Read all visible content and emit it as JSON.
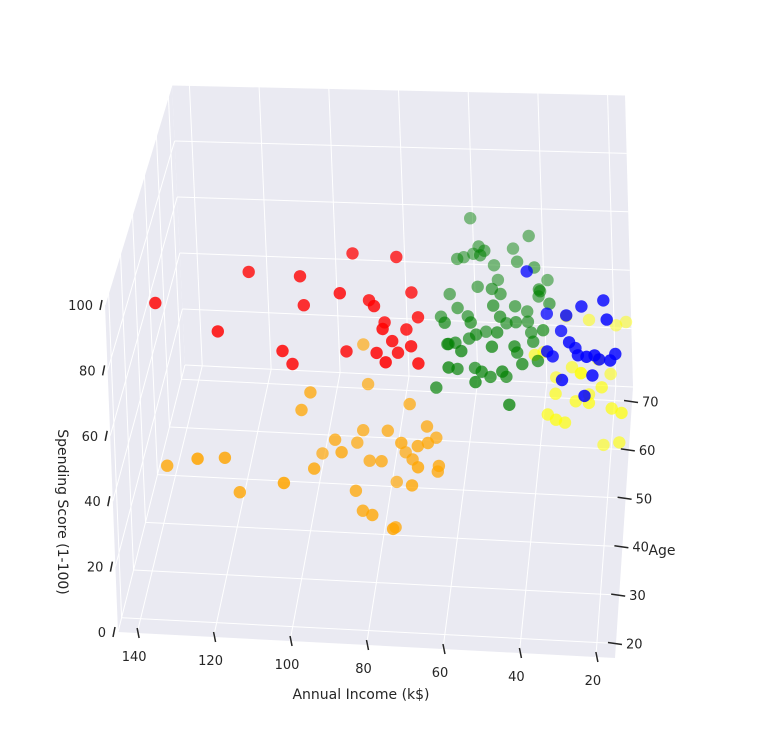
{
  "chart_data": {
    "type": "scatter",
    "projection": "3d",
    "title": "",
    "xlabel": "Annual Income (k$)",
    "ylabel": "Age",
    "zlabel": "Spending Score (1-100)",
    "xlim": [
      15,
      145
    ],
    "ylim": [
      17,
      73
    ],
    "zlim": [
      0,
      100
    ],
    "x_ticks": [
      140,
      120,
      100,
      80,
      60,
      40,
      20
    ],
    "y_ticks": [
      70,
      60,
      50,
      40,
      30,
      20
    ],
    "z_ticks": [
      100,
      80,
      60,
      40,
      20,
      0
    ],
    "grid": true,
    "background_color": "#eaeaf2",
    "grid_color": "#ffffff",
    "series": [
      {
        "color": "#ff0000",
        "points": [
          [
            137,
            32,
            83
          ],
          [
            120,
            30,
            79
          ],
          [
            113,
            36,
            91
          ],
          [
            103,
            30,
            75
          ],
          [
            101,
            32,
            68
          ],
          [
            99,
            35,
            93
          ],
          [
            98,
            34,
            85
          ],
          [
            88,
            33,
            92
          ],
          [
            87,
            34,
            71
          ],
          [
            86,
            40,
            95
          ],
          [
            81,
            36,
            86
          ],
          [
            79,
            33,
            89
          ],
          [
            78,
            30,
            78
          ],
          [
            77,
            36,
            79
          ],
          [
            76,
            29,
            88
          ],
          [
            75,
            27,
            80
          ],
          [
            74,
            31,
            81
          ],
          [
            73,
            33,
            74
          ],
          [
            71,
            35,
            79
          ],
          [
            70,
            38,
            87
          ],
          [
            69,
            31,
            80
          ],
          [
            68,
            36,
            82
          ],
          [
            67,
            30,
            76
          ],
          [
            74,
            39,
            97
          ]
        ]
      },
      {
        "color": "#008000",
        "points": [
          [
            63,
            65,
            55
          ],
          [
            62,
            59,
            48
          ],
          [
            61,
            50,
            51
          ],
          [
            60,
            47,
            47
          ],
          [
            59,
            68,
            52
          ],
          [
            58,
            54,
            46
          ],
          [
            57,
            52,
            55
          ],
          [
            56,
            63,
            60
          ],
          [
            55,
            49,
            56
          ],
          [
            54,
            58,
            42
          ],
          [
            53,
            45,
            50
          ],
          [
            52,
            67,
            45
          ],
          [
            51,
            54,
            58
          ],
          [
            50,
            60,
            52
          ],
          [
            49,
            48,
            59
          ],
          [
            48,
            57,
            47
          ],
          [
            47,
            43,
            54
          ],
          [
            46,
            65,
            55
          ],
          [
            45,
            55,
            51
          ],
          [
            44,
            50,
            49
          ],
          [
            43,
            62,
            43
          ],
          [
            42,
            46,
            52
          ],
          [
            41,
            56,
            46
          ],
          [
            40,
            53,
            48
          ],
          [
            39,
            59,
            56
          ],
          [
            38,
            68,
            44
          ],
          [
            60,
            70,
            61
          ],
          [
            57,
            66,
            58
          ],
          [
            66,
            47,
            40
          ],
          [
            64,
            55,
            42
          ],
          [
            65,
            63,
            46
          ],
          [
            62,
            69,
            49
          ],
          [
            55,
            64,
            60
          ],
          [
            52,
            58,
            57
          ],
          [
            48,
            70,
            51
          ],
          [
            46,
            60,
            48
          ],
          [
            61,
            40,
            59
          ],
          [
            58,
            43,
            60
          ],
          [
            54,
            41,
            53
          ],
          [
            50,
            45,
            59
          ],
          [
            47,
            49,
            42
          ],
          [
            45,
            41,
            46
          ],
          [
            43,
            68,
            59
          ],
          [
            41,
            64,
            55
          ],
          [
            39,
            61,
            52
          ],
          [
            37,
            52,
            54
          ],
          [
            63,
            49,
            52
          ],
          [
            59,
            58,
            47
          ],
          [
            56,
            51,
            41
          ],
          [
            53,
            67,
            50
          ],
          [
            49,
            53,
            56
          ],
          [
            44,
            46,
            58
          ],
          [
            42,
            57,
            48
          ],
          [
            40,
            64,
            45
          ],
          [
            38,
            48,
            50
          ],
          [
            36,
            58,
            53
          ],
          [
            64,
            51,
            56
          ],
          [
            57,
            63,
            49
          ],
          [
            51,
            47,
            45
          ],
          [
            67,
            60,
            43
          ]
        ]
      },
      {
        "color": "#ffa500",
        "points": [
          [
            137,
            36,
            25
          ],
          [
            126,
            28,
            40
          ],
          [
            120,
            32,
            35
          ],
          [
            117,
            34,
            21
          ],
          [
            103,
            27,
            36
          ],
          [
            101,
            39,
            42
          ],
          [
            99,
            41,
            45
          ],
          [
            98,
            47,
            15
          ],
          [
            97,
            35,
            29
          ],
          [
            93,
            42,
            28
          ],
          [
            90,
            37,
            32
          ],
          [
            88,
            46,
            21
          ],
          [
            87,
            39,
            16
          ],
          [
            86,
            45,
            27
          ],
          [
            85,
            38,
            11
          ],
          [
            84,
            43,
            20
          ],
          [
            82,
            36,
            13
          ],
          [
            80,
            40,
            25
          ],
          [
            79,
            44,
            29
          ],
          [
            78,
            48,
            5
          ],
          [
            77,
            41,
            1
          ],
          [
            76,
            34,
            12
          ],
          [
            75,
            47,
            17
          ],
          [
            74,
            38,
            35
          ],
          [
            73,
            45,
            37
          ],
          [
            72,
            42,
            23
          ],
          [
            71,
            36,
            24
          ],
          [
            70,
            40,
            31
          ],
          [
            69,
            35,
            32
          ],
          [
            68,
            43,
            33
          ],
          [
            67,
            39,
            34
          ],
          [
            66,
            45,
            26
          ],
          [
            65,
            41,
            21
          ],
          [
            64,
            38,
            28
          ],
          [
            87,
            52,
            45
          ],
          [
            85,
            48,
            38
          ]
        ]
      },
      {
        "color": "#0000ff",
        "points": [
          [
            39,
            39,
            97
          ],
          [
            34,
            40,
            81
          ],
          [
            33,
            32,
            82
          ],
          [
            32,
            35,
            75
          ],
          [
            30,
            38,
            79
          ],
          [
            29,
            30,
            76
          ],
          [
            28,
            34,
            92
          ],
          [
            27,
            31,
            88
          ],
          [
            26,
            36,
            77
          ],
          [
            25,
            33,
            80
          ],
          [
            24,
            35,
            94
          ],
          [
            23,
            29,
            73
          ],
          [
            22,
            27,
            91
          ],
          [
            21,
            31,
            77
          ],
          [
            20,
            28,
            90
          ],
          [
            19,
            30,
            85
          ],
          [
            18,
            34,
            99
          ],
          [
            17,
            32,
            96
          ],
          [
            16,
            29,
            87
          ],
          [
            15,
            33,
            82
          ]
        ]
      },
      {
        "color": "#ffff00",
        "points": [
          [
            40,
            55,
            40
          ],
          [
            38,
            58,
            36
          ],
          [
            36,
            50,
            28
          ],
          [
            35,
            60,
            24
          ],
          [
            34,
            52,
            32
          ],
          [
            33,
            45,
            35
          ],
          [
            32,
            62,
            42
          ],
          [
            31,
            48,
            29
          ],
          [
            30,
            57,
            33
          ],
          [
            29,
            67,
            14
          ],
          [
            28,
            49,
            35
          ],
          [
            27,
            53,
            38
          ],
          [
            26,
            65,
            36
          ],
          [
            25,
            54,
            29
          ],
          [
            24,
            46,
            40
          ],
          [
            23,
            60,
            31
          ],
          [
            22,
            59,
            3
          ],
          [
            21,
            51,
            37
          ],
          [
            20,
            63,
            21
          ],
          [
            19,
            70,
            26
          ],
          [
            18,
            48,
            35
          ],
          [
            17,
            55,
            11
          ],
          [
            16,
            69,
            29
          ],
          [
            15,
            45,
            39
          ]
        ]
      }
    ]
  }
}
